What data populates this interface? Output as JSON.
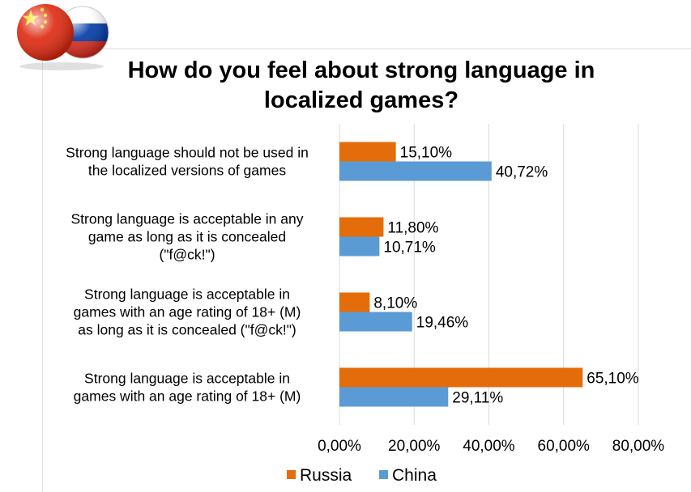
{
  "chart_data": {
    "type": "bar",
    "orientation": "horizontal",
    "title": [
      "How do you feel about strong language in",
      "localized games?"
    ],
    "categories": [
      [
        "Strong language should not be used in",
        "the localized  versions of games"
      ],
      [
        "Strong language is acceptable in any",
        "game as long as it is concealed",
        "(\"f@ck!\")"
      ],
      [
        "Strong language is acceptable in",
        "games with an age rating of 18+ (M)",
        "as long as it is concealed (\"f@ck!\")"
      ],
      [
        "Strong language is acceptable in",
        "games with an age rating of 18+ (M)"
      ]
    ],
    "series": [
      {
        "name": "Russia",
        "color": "#e46c0a",
        "values": [
          15.1,
          11.8,
          8.1,
          65.1
        ],
        "labels": [
          "15,10%",
          "11,80%",
          "8,10%",
          "65,10%"
        ]
      },
      {
        "name": "China",
        "color": "#5b9bd5",
        "values": [
          40.72,
          10.71,
          19.46,
          29.11
        ],
        "labels": [
          "40,72%",
          "10,71%",
          "19,46%",
          "29,11%"
        ]
      }
    ],
    "xlim": [
      0,
      80
    ],
    "xticks": [
      0,
      20,
      40,
      60,
      80
    ],
    "xtick_labels": [
      "0,00%",
      "20,00%",
      "40,00%",
      "60,00%",
      "80,00%"
    ],
    "grid": true,
    "legend_position": "bottom-center"
  },
  "decorations": {
    "flags_icon": "china-russia-flags-icon",
    "flag_colors": {
      "china": "#de2910",
      "china_star": "#ffde00",
      "russia_white": "#ffffff",
      "russia_blue": "#0039a6",
      "russia_red": "#d52b1e"
    }
  }
}
